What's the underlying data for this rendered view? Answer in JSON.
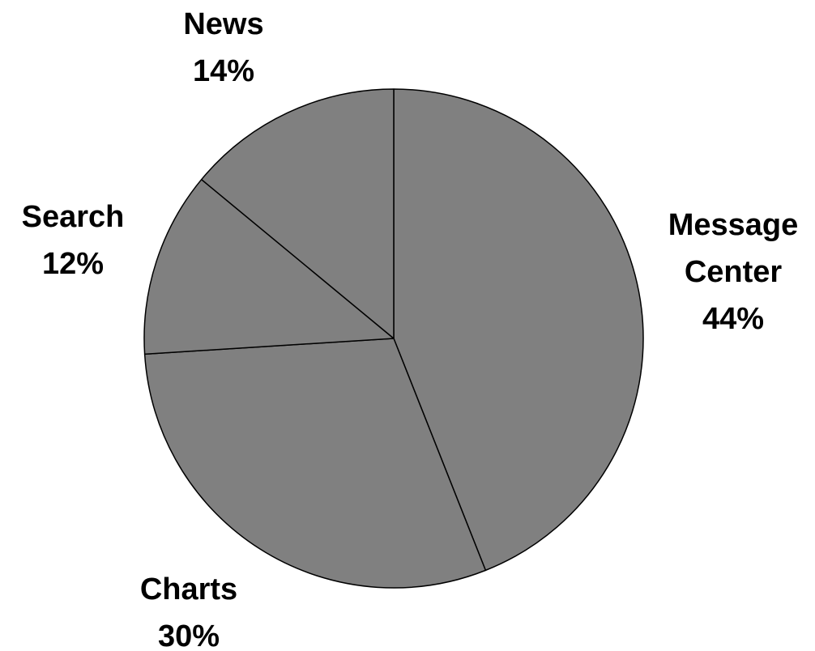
{
  "chart_data": {
    "type": "pie",
    "title": "",
    "slices": [
      {
        "name": "Message Center",
        "label_lines": [
          "Message",
          "Center"
        ],
        "percent_label": "44%",
        "value": 44
      },
      {
        "name": "Charts",
        "label_lines": [
          "Charts"
        ],
        "percent_label": "30%",
        "value": 30
      },
      {
        "name": "Search",
        "label_lines": [
          "Search"
        ],
        "percent_label": "12%",
        "value": 12
      },
      {
        "name": "News",
        "label_lines": [
          "News"
        ],
        "percent_label": "14%",
        "value": 14
      }
    ],
    "start_angle": "top (12 o'clock)",
    "direction": "clockwise",
    "legend": "none",
    "colors": {
      "slice_fill": "#808080",
      "slice_stroke": "#000000",
      "text": "#000000",
      "background": "#ffffff"
    }
  }
}
